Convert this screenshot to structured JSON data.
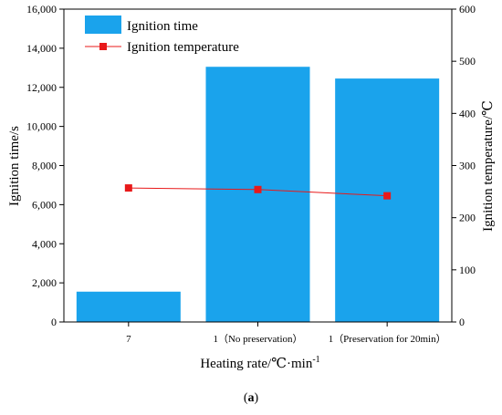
{
  "chart_data": {
    "type": "bar+line",
    "categories": [
      "7",
      "1（No preservation）",
      "1（Preservation for 20min）"
    ],
    "series": [
      {
        "name": "Ignition time",
        "kind": "bar",
        "axis": "left",
        "color": "#1aa3ec",
        "values": [
          1550,
          13050,
          12450
        ]
      },
      {
        "name": "Ignition temperature",
        "kind": "line",
        "axis": "right",
        "color": "#e8191a",
        "values": [
          257,
          254,
          242
        ]
      }
    ],
    "xlabel_main": "Heating rate/℃·min",
    "xlabel_sup": "-1",
    "ylabel": "Ignition time/s",
    "ylabel_right": "Ignition temperature/℃",
    "ylim": [
      0,
      16000
    ],
    "ylim_right": [
      0,
      600
    ],
    "yticks": [
      0,
      2000,
      4000,
      6000,
      8000,
      10000,
      12000,
      14000,
      16000
    ],
    "yticks_labels": [
      "0",
      "2,000",
      "4,000",
      "6,000",
      "8,000",
      "10,000",
      "12,000",
      "14,000",
      "16,000"
    ],
    "yticks_right": [
      0,
      100,
      200,
      300,
      400,
      500,
      600
    ],
    "yticks_right_labels": [
      "0",
      "100",
      "200",
      "300",
      "400",
      "500",
      "600"
    ],
    "legend_position": "top-left",
    "grid": false
  },
  "caption": {
    "open": "(",
    "letter": "a",
    "close": ")"
  }
}
